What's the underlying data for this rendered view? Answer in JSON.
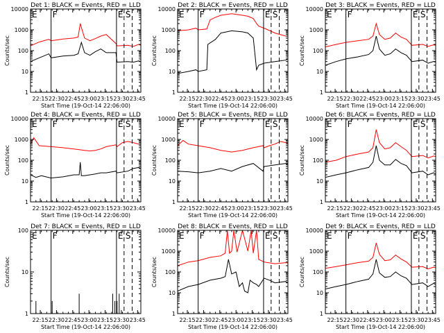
{
  "colors": {
    "events": "#000000",
    "lld": "#ff0000",
    "axes": "#000000",
    "background": "#ffffff"
  },
  "shared": {
    "ylabel": "Counts/sec",
    "xlabel": "Start Time (19-Oct-14 22:06:00)",
    "x_ticks": [
      "22:15",
      "22:30",
      "22:45",
      "23:00",
      "23:15",
      "23:30",
      "23:45"
    ],
    "x_tick_minutes": [
      9,
      24,
      39,
      54,
      69,
      84,
      99
    ],
    "xlim_minutes": [
      0,
      102
    ],
    "event_markers": [
      {
        "label": "E",
        "minute": 0,
        "style": "solid"
      },
      {
        "label": "F",
        "minute": 19,
        "style": "solid"
      },
      {
        "label": "E",
        "minute": 79.5,
        "style": "solid"
      },
      {
        "label": "S",
        "minute": 86.5,
        "style": "dashed"
      },
      {
        "label": "",
        "minute": 94,
        "style": "dashed"
      }
    ]
  },
  "chart_data": [
    {
      "type": "line",
      "title": "Det 1: BLACK = Events, RED = LLD",
      "yscale": "log",
      "ylim": [
        1,
        10000
      ],
      "y_ticks": [
        "1",
        "10",
        "100",
        "1000",
        "10000"
      ],
      "series": [
        {
          "name": "Events",
          "color": "#000000",
          "x": [
            0,
            8,
            17,
            19,
            30,
            40,
            44,
            47,
            50,
            55,
            60,
            65,
            70,
            79,
            80,
            90,
            95,
            100,
            102
          ],
          "y": [
            30,
            45,
            70,
            45,
            55,
            60,
            70,
            250,
            80,
            60,
            90,
            120,
            80,
            80,
            28,
            30,
            28,
            32,
            30
          ]
        },
        {
          "name": "LLD",
          "color": "#ff0000",
          "x": [
            0,
            8,
            17,
            19,
            30,
            40,
            44,
            46,
            50,
            55,
            60,
            65,
            70,
            79,
            80,
            90,
            95,
            100,
            102
          ],
          "y": [
            170,
            260,
            350,
            300,
            360,
            400,
            450,
            2000,
            400,
            300,
            380,
            500,
            600,
            220,
            170,
            180,
            160,
            200,
            180
          ]
        }
      ]
    },
    {
      "type": "line",
      "title": "Det 2: BLACK = Events, RED = LLD",
      "yscale": "log",
      "ylim": [
        1,
        10000
      ],
      "y_ticks": [
        "1",
        "10",
        "100",
        "1000",
        "10000"
      ],
      "series": [
        {
          "name": "Events",
          "color": "#000000",
          "x": [
            0,
            10,
            17,
            19,
            27,
            28,
            35,
            40,
            50,
            60,
            65,
            70,
            73,
            75,
            80,
            90,
            100,
            102
          ],
          "y": [
            8,
            10,
            12,
            10,
            12,
            200,
            350,
            700,
            900,
            800,
            700,
            400,
            12,
            20,
            25,
            30,
            35,
            40
          ]
        },
        {
          "name": "LLD",
          "color": "#ff0000",
          "x": [
            0,
            10,
            17,
            19,
            27,
            30,
            35,
            40,
            50,
            60,
            65,
            70,
            73,
            75,
            80,
            90,
            100,
            102
          ],
          "y": [
            900,
            1000,
            1200,
            1000,
            1100,
            3000,
            4000,
            5000,
            6000,
            5000,
            4500,
            3500,
            2000,
            1500,
            1200,
            700,
            500,
            500
          ]
        }
      ]
    },
    {
      "type": "line",
      "title": "Det 3: BLACK = Events, RED = LLD",
      "yscale": "log",
      "ylim": [
        1,
        10000
      ],
      "y_ticks": [
        "1",
        "10",
        "100",
        "1000",
        "10000"
      ],
      "series": [
        {
          "name": "Events",
          "color": "#000000",
          "x": [
            0,
            10,
            19,
            30,
            40,
            44,
            47,
            50,
            55,
            60,
            65,
            70,
            75,
            80,
            90,
            95,
            100,
            102
          ],
          "y": [
            20,
            30,
            40,
            50,
            65,
            100,
            500,
            120,
            60,
            70,
            120,
            80,
            60,
            30,
            35,
            25,
            30,
            28
          ]
        },
        {
          "name": "LLD",
          "color": "#ff0000",
          "x": [
            0,
            10,
            19,
            30,
            40,
            44,
            47,
            50,
            55,
            60,
            65,
            70,
            75,
            80,
            90,
            95,
            100,
            102
          ],
          "y": [
            150,
            200,
            250,
            300,
            350,
            500,
            2000,
            600,
            350,
            400,
            700,
            450,
            350,
            180,
            200,
            160,
            190,
            180
          ]
        }
      ]
    },
    {
      "type": "line",
      "title": "Det 4: BLACK = Events, RED = LLD",
      "yscale": "log",
      "ylim": [
        1,
        10000
      ],
      "y_ticks": [
        "1",
        "10",
        "100",
        "1000",
        "10000"
      ],
      "series": [
        {
          "name": "Events",
          "color": "#000000",
          "x": [
            0,
            5,
            10,
            19,
            30,
            40,
            45,
            46,
            47,
            50,
            55,
            60,
            65,
            70,
            79,
            80,
            90,
            95,
            100,
            102
          ],
          "y": [
            20,
            15,
            18,
            14,
            16,
            20,
            20,
            80,
            18,
            18,
            20,
            22,
            25,
            25,
            30,
            25,
            30,
            40,
            45,
            40
          ]
        },
        {
          "name": "LLD",
          "color": "#ff0000",
          "x": [
            0,
            3,
            8,
            19,
            30,
            40,
            50,
            55,
            60,
            65,
            70,
            79,
            80,
            85,
            90,
            95,
            100,
            102
          ],
          "y": [
            600,
            1200,
            500,
            450,
            400,
            350,
            300,
            280,
            300,
            350,
            450,
            550,
            450,
            700,
            800,
            700,
            600,
            600
          ]
        }
      ]
    },
    {
      "type": "line",
      "title": "Det 5: BLACK = Events, RED = LLD",
      "yscale": "log",
      "ylim": [
        1,
        10000
      ],
      "y_ticks": [
        "1",
        "10",
        "100",
        "1000",
        "10000"
      ],
      "series": [
        {
          "name": "Events",
          "color": "#000000",
          "x": [
            0,
            10,
            19,
            30,
            40,
            50,
            60,
            70,
            79,
            80,
            90,
            100,
            102
          ],
          "y": [
            30,
            28,
            25,
            30,
            40,
            30,
            50,
            70,
            30,
            50,
            60,
            70,
            60
          ]
        },
        {
          "name": "LLD",
          "color": "#ff0000",
          "x": [
            0,
            5,
            10,
            19,
            30,
            40,
            50,
            60,
            70,
            79,
            80,
            85,
            90,
            95,
            100,
            102
          ],
          "y": [
            500,
            900,
            600,
            500,
            400,
            300,
            250,
            300,
            400,
            500,
            400,
            500,
            600,
            800,
            700,
            650
          ]
        }
      ]
    },
    {
      "type": "line",
      "title": "Det 6: BLACK = Events, RED = LLD",
      "yscale": "log",
      "ylim": [
        1,
        10000
      ],
      "y_ticks": [
        "1",
        "10",
        "100",
        "1000",
        "10000"
      ],
      "series": [
        {
          "name": "Events",
          "color": "#000000",
          "x": [
            0,
            10,
            19,
            30,
            40,
            44,
            47,
            50,
            55,
            60,
            65,
            70,
            75,
            80,
            90,
            95,
            100,
            102
          ],
          "y": [
            15,
            20,
            25,
            35,
            45,
            80,
            500,
            100,
            60,
            60,
            110,
            70,
            55,
            25,
            30,
            20,
            25,
            22
          ]
        },
        {
          "name": "LLD",
          "color": "#ff0000",
          "x": [
            0,
            10,
            19,
            30,
            40,
            44,
            47,
            50,
            55,
            60,
            65,
            70,
            75,
            80,
            90,
            95,
            100,
            102
          ],
          "y": [
            80,
            100,
            150,
            200,
            250,
            400,
            3000,
            700,
            350,
            400,
            700,
            450,
            300,
            150,
            170,
            130,
            160,
            150
          ]
        }
      ]
    },
    {
      "type": "line",
      "title": "Det 7: BLACK = Events, RED = LLD",
      "yscale": "log",
      "ylim": [
        1,
        100
      ],
      "y_ticks": [
        "1",
        "10",
        "100"
      ],
      "series": [
        {
          "name": "Events",
          "color": "#000000",
          "x": [
            5,
            5,
            5,
            20,
            20,
            20,
            45,
            45,
            45,
            76,
            76,
            76,
            78,
            78,
            78,
            80,
            80,
            80,
            82,
            82,
            82
          ],
          "y": [
            1,
            2,
            1,
            1,
            2,
            1,
            1,
            3,
            1,
            1,
            3,
            1,
            1,
            2,
            1,
            1,
            2,
            1,
            1,
            3,
            1
          ]
        }
      ]
    },
    {
      "type": "line",
      "title": "Det 8: BLACK = Events, RED = LLD",
      "yscale": "log",
      "ylim": [
        1,
        10000
      ],
      "y_ticks": [
        "1",
        "10",
        "100",
        "1000",
        "10000"
      ],
      "series": [
        {
          "name": "Events",
          "color": "#000000",
          "x": [
            0,
            10,
            19,
            30,
            40,
            44,
            47,
            50,
            54,
            57,
            60,
            62,
            65,
            67,
            70,
            73,
            75,
            80,
            85,
            90,
            100,
            102
          ],
          "y": [
            12,
            20,
            25,
            40,
            50,
            60,
            400,
            80,
            100,
            20,
            30,
            12,
            10,
            40,
            30,
            25,
            20,
            50,
            40,
            30,
            35,
            30
          ]
        },
        {
          "name": "LLD",
          "color": "#ff0000",
          "x": [
            0,
            10,
            19,
            30,
            40,
            44,
            46,
            48,
            50,
            52,
            55,
            60,
            65,
            68,
            70,
            73,
            75,
            80,
            90,
            100,
            102
          ],
          "y": [
            200,
            300,
            350,
            500,
            600,
            800,
            10000,
            800,
            1000,
            10000,
            900,
            10000,
            1000,
            10000,
            800,
            10000,
            400,
            300,
            250,
            280,
            270
          ]
        }
      ]
    },
    {
      "type": "line",
      "title": "Det 9: BLACK = Events, RED = LLD",
      "yscale": "log",
      "ylim": [
        1,
        10000
      ],
      "y_ticks": [
        "1",
        "10",
        "100",
        "1000",
        "10000"
      ],
      "series": [
        {
          "name": "Events",
          "color": "#000000",
          "x": [
            0,
            10,
            19,
            30,
            40,
            44,
            47,
            50,
            55,
            60,
            65,
            70,
            75,
            80,
            90,
            95,
            100,
            102
          ],
          "y": [
            15,
            20,
            25,
            35,
            45,
            80,
            400,
            90,
            55,
            60,
            100,
            65,
            50,
            25,
            30,
            20,
            28,
            25
          ]
        },
        {
          "name": "LLD",
          "color": "#ff0000",
          "x": [
            0,
            10,
            19,
            30,
            40,
            44,
            47,
            50,
            55,
            60,
            65,
            70,
            75,
            80,
            90,
            95,
            100,
            102
          ],
          "y": [
            150,
            180,
            220,
            280,
            330,
            500,
            2500,
            700,
            350,
            380,
            650,
            420,
            300,
            170,
            180,
            140,
            170,
            160
          ]
        }
      ]
    }
  ]
}
